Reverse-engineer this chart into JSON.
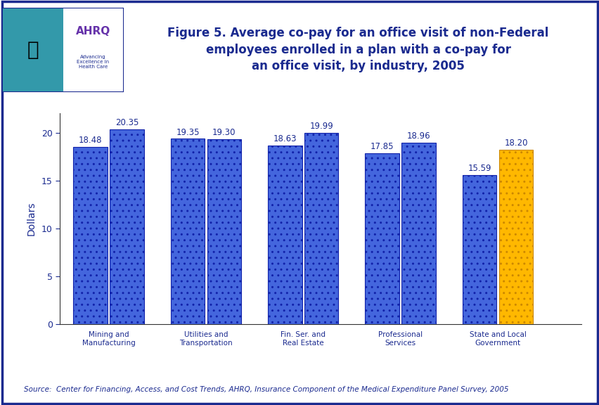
{
  "title": "Figure 5. Average co-pay for an office visit of non-Federal\nemployees enrolled in a plan with a co-pay for\nan office visit, by industry, 2005",
  "ylabel": "Dollars",
  "values": [
    18.48,
    20.35,
    19.35,
    19.3,
    18.63,
    19.99,
    17.85,
    18.96,
    15.59,
    18.2
  ],
  "value_labels": [
    "18.48",
    "20.35",
    "19.35",
    "19.30",
    "18.63",
    "19.99",
    "17.85",
    "18.96",
    "15.59",
    "18.20"
  ],
  "bar_colors": [
    "#4466DD",
    "#4466DD",
    "#4466DD",
    "#4466DD",
    "#4466DD",
    "#4466DD",
    "#4466DD",
    "#4466DD",
    "#4466DD",
    "#FFB800"
  ],
  "bar_edge_colors": [
    "#1122AA",
    "#1122AA",
    "#1122AA",
    "#1122AA",
    "#1122AA",
    "#1122AA",
    "#1122AA",
    "#1122AA",
    "#1122AA",
    "#CC8800"
  ],
  "group_labels": [
    "Mining and\nManufacturing",
    "Utilities and\nTransportation",
    "Fin. Ser. and\nReal Estate",
    "Professional\nServices",
    "State and Local\nGovernment"
  ],
  "ylim": [
    0,
    22
  ],
  "yticks": [
    0,
    5,
    10,
    15,
    20
  ],
  "source_text": "Source:  Center for Financing, Access, and Cost Trends, AHRQ, Insurance Component of the Medical Expenditure Panel Survey, 2005",
  "bg_color": "#FFFFFF",
  "title_color": "#1A2A8F",
  "label_color": "#1A2A8F",
  "header_bar_color": "#1A2A8F",
  "title_fontsize": 12,
  "label_fontsize": 7.5,
  "value_fontsize": 8.5,
  "source_fontsize": 7.5,
  "bar_hatch": ".."
}
